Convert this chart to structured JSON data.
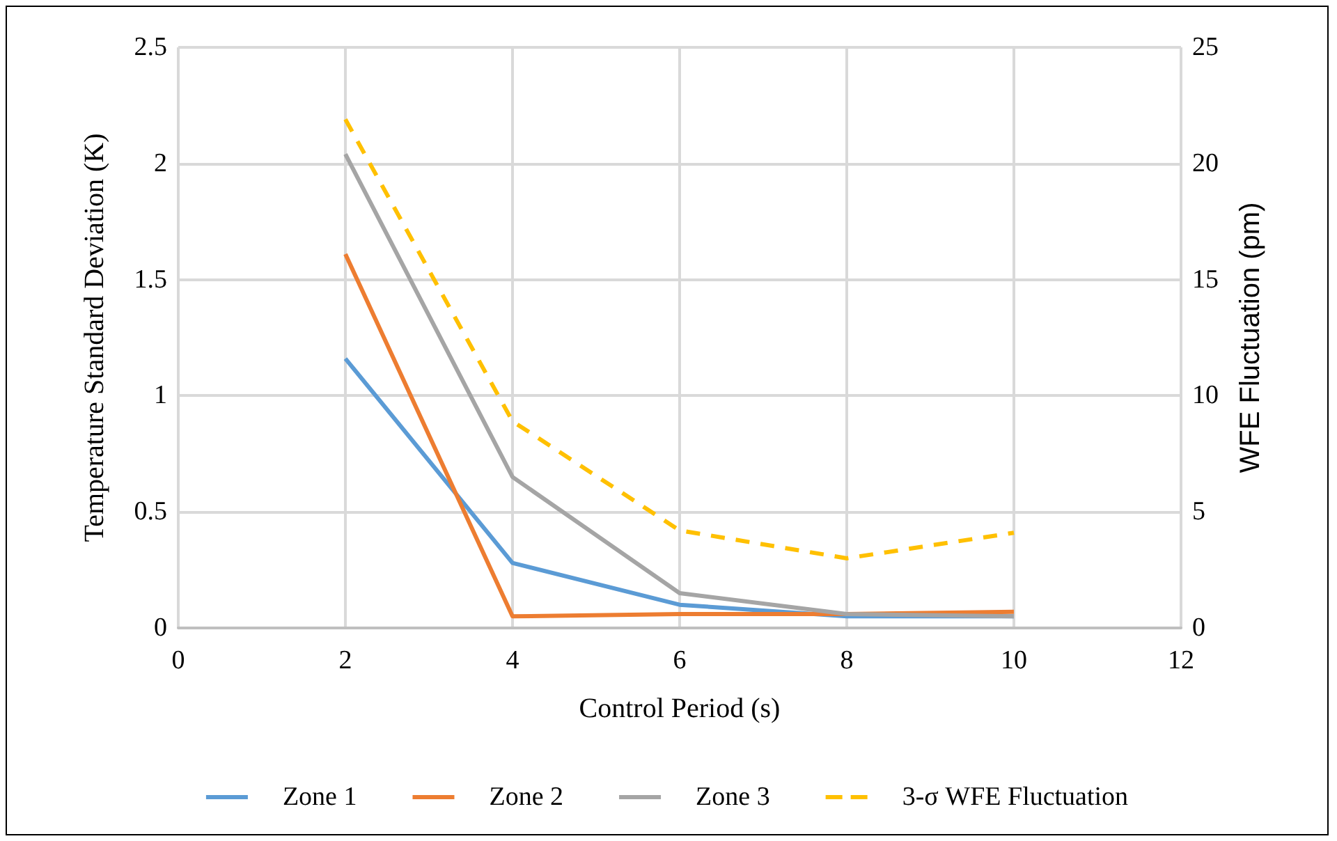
{
  "chart_data": {
    "type": "line",
    "xlabel": "Control Period (s)",
    "ylabel": "Temperature Standard Deviation (K)",
    "y2label": "WFE Fluctuation (pm)",
    "x": [
      2,
      4,
      6,
      8,
      10
    ],
    "series": [
      {
        "name": "Zone 1",
        "color": "#5b9bd5",
        "values": [
          1.16,
          0.28,
          0.1,
          0.05,
          0.05
        ]
      },
      {
        "name": "Zone 2",
        "color": "#ed7d31",
        "values": [
          1.61,
          0.05,
          0.06,
          0.06,
          0.07
        ]
      },
      {
        "name": "Zone 3",
        "color": "#a5a5a5",
        "values": [
          2.04,
          0.65,
          0.15,
          0.06,
          0.05
        ]
      },
      {
        "name": "3-σ WFE Fluctuation",
        "color": "#ffc000",
        "values": [
          21.9,
          8.9,
          4.2,
          3.0,
          4.1
        ],
        "axis": "y2",
        "line_style": "dashed"
      }
    ],
    "xlim": [
      0,
      12
    ],
    "xticks": [
      0,
      2,
      4,
      6,
      8,
      10,
      12
    ],
    "ylim": [
      0,
      2.5
    ],
    "yticks": [
      0,
      0.5,
      1,
      1.5,
      2,
      2.5
    ],
    "y2lim": [
      0,
      25
    ],
    "y2ticks": [
      0,
      5,
      10,
      15,
      20,
      25
    ],
    "grid": true,
    "legend": "bottom",
    "marker": "none",
    "line_style": "solid"
  }
}
